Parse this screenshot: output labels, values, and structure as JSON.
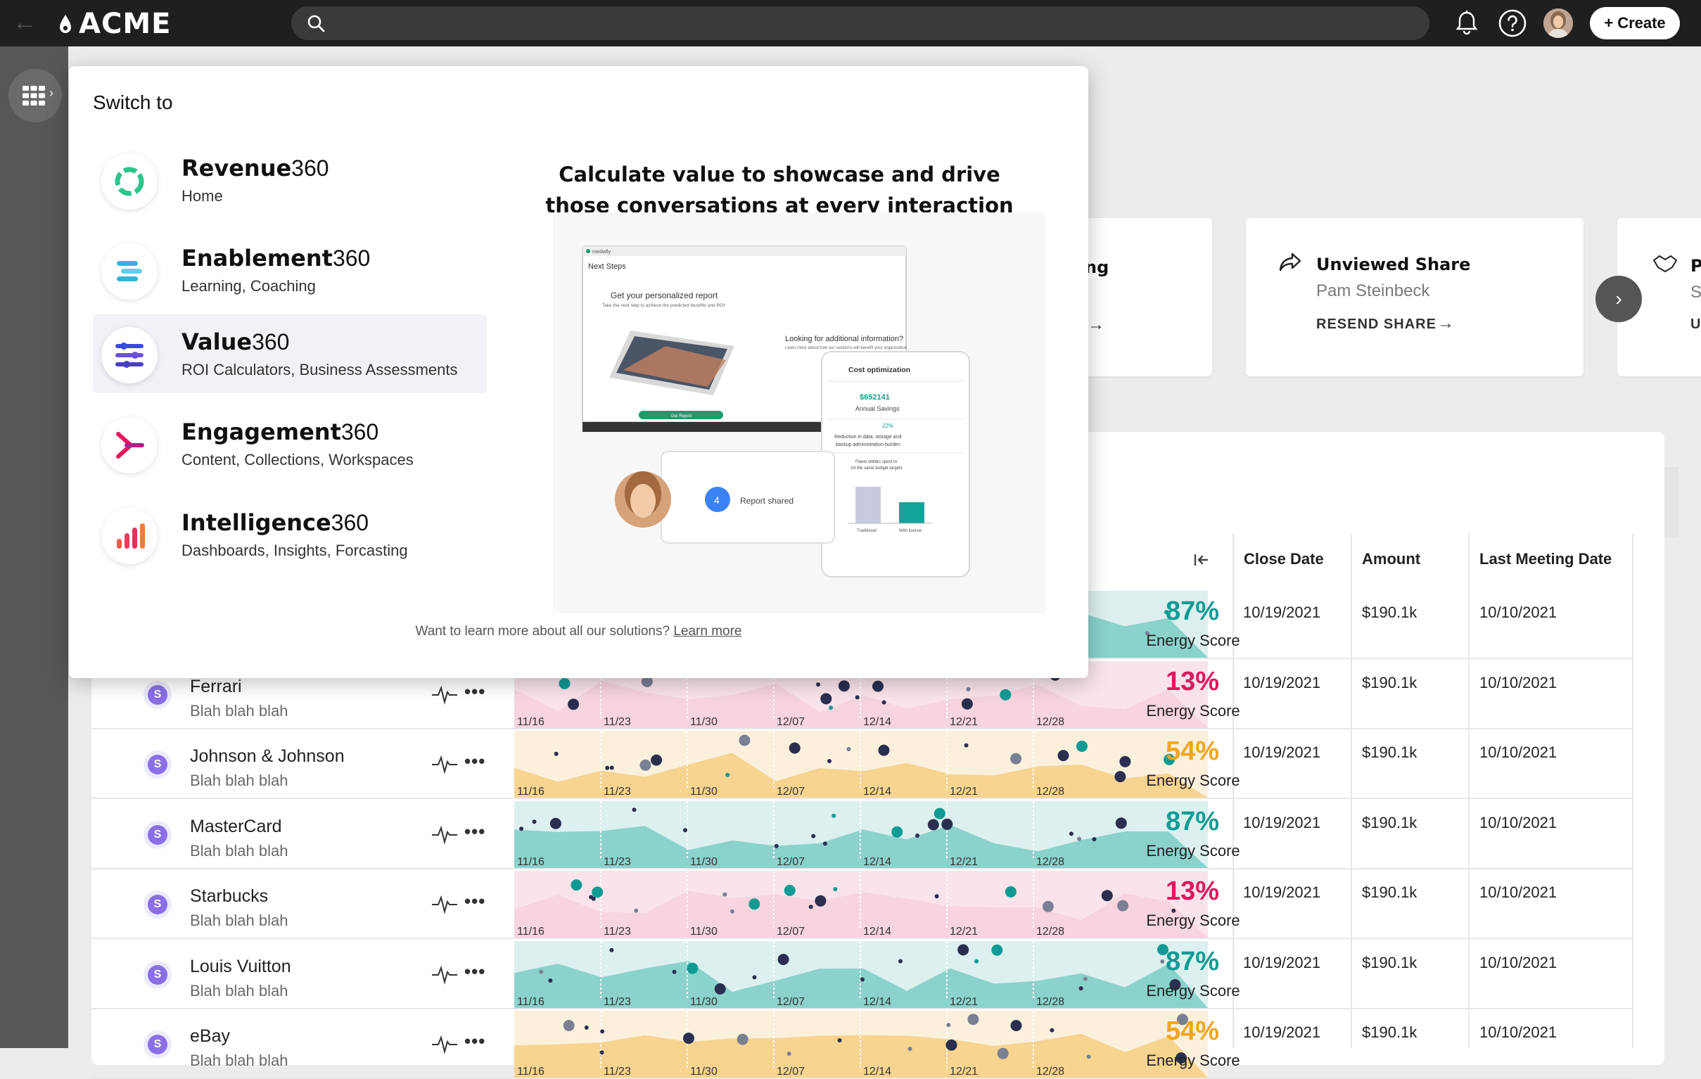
{
  "brand": {
    "name": "ACME"
  },
  "search": {
    "placeholder": ""
  },
  "toolbar": {
    "create_label": "Create"
  },
  "cards": [
    {
      "title_fragment": "ng"
    },
    {
      "title": "Unviewed Share",
      "subtitle": "Pam Steinbeck",
      "action": "RESEND SHARE"
    },
    {
      "title_fragment": "P",
      "subtitle_fragment": "S",
      "action_fragment": "U"
    }
  ],
  "table": {
    "headers": [
      "Close Date",
      "Amount",
      "Last Meeting Date"
    ],
    "score_label": "Energy Score",
    "date_ticks": [
      "11/16",
      "11/23",
      "11/30",
      "12/07",
      "12/14",
      "12/21",
      "12/28"
    ],
    "rows": [
      {
        "name": "",
        "sub": "",
        "score": "87%",
        "close": "10/19/2021",
        "amount": "$190.1k",
        "meeting": "10/10/2021",
        "tone": "teal"
      },
      {
        "name": "Ferrari",
        "sub": "Blah blah blah",
        "score": "13%",
        "close": "10/19/2021",
        "amount": "$190.1k",
        "meeting": "10/10/2021",
        "tone": "pink"
      },
      {
        "name": "Johnson & Johnson",
        "sub": "Blah blah blah",
        "score": "54%",
        "close": "10/19/2021",
        "amount": "$190.1k",
        "meeting": "10/10/2021",
        "tone": "orange"
      },
      {
        "name": "MasterCard",
        "sub": "Blah blah blah",
        "score": "87%",
        "close": "10/19/2021",
        "amount": "$190.1k",
        "meeting": "10/10/2021",
        "tone": "teal"
      },
      {
        "name": "Starbucks",
        "sub": "Blah blah blah",
        "score": "13%",
        "close": "10/19/2021",
        "amount": "$190.1k",
        "meeting": "10/10/2021",
        "tone": "pink"
      },
      {
        "name": "Louis Vuitton",
        "sub": "Blah blah blah",
        "score": "87%",
        "close": "10/19/2021",
        "amount": "$190.1k",
        "meeting": "10/10/2021",
        "tone": "teal"
      },
      {
        "name": "eBay",
        "sub": "Blah blah blah",
        "score": "54%",
        "close": "10/19/2021",
        "amount": "$190.1k",
        "meeting": "10/10/2021",
        "tone": "orange"
      }
    ]
  },
  "colors": {
    "teal": "#0f9b93",
    "pink": "#e0175f",
    "orange": "#f2a61a",
    "navy": "#2a2f4f"
  },
  "switcher": {
    "title": "Switch to",
    "apps": [
      {
        "brand": "Revenue",
        "suffix": "360",
        "desc": "Home",
        "icon": "revenue-ring-icon"
      },
      {
        "brand": "Enablement",
        "suffix": "360",
        "desc": "Learning, Coaching",
        "icon": "enablement-bars-icon"
      },
      {
        "brand": "Value",
        "suffix": "360",
        "desc": "ROI Calculators, Business Assessments",
        "icon": "value-sliders-icon"
      },
      {
        "brand": "Engagement",
        "suffix": "360",
        "desc": "Content, Collections, Workspaces",
        "icon": "engagement-arrow-icon"
      },
      {
        "brand": "Intelligence",
        "suffix": "360",
        "desc": "Dashboards, Insights, Forcasting",
        "icon": "intelligence-bars-icon"
      }
    ],
    "selected_index": 2,
    "promo": {
      "title": "Calculate value to showcase and drive those conversations at every interaction",
      "next_steps": "Next Steps",
      "report_heading": "Get your personalized report",
      "report_sub": "Take the next step to achieve the predicted benefits and ROI",
      "get_report": "Get Report",
      "additional": "Looking for additional information?",
      "additional_sub": "Learn more about how our solutions will benefit your organization",
      "cost_title": "Cost optimization",
      "savings_value": "$652141",
      "savings_label": "Annual Savings",
      "pct": "22%",
      "pct_desc1": "Reduction in data, storage and",
      "pct_desc2": "backup administration burden",
      "fewer1": "Fewer dollars spent to",
      "fewer2": "hit the same budget targets",
      "bar_a": "Traditional",
      "bar_b": "With license",
      "badge_count": "4",
      "report_shared": "Report shared",
      "brand_small": "mediafly"
    },
    "footer_text": "Want to learn more about all our solutions?",
    "footer_link": "Learn more"
  }
}
